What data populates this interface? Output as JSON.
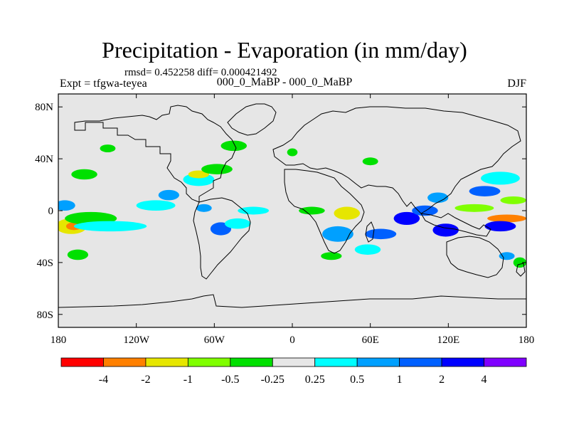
{
  "chart_data": {
    "type": "heatmap",
    "title": "Precipitation - Evaporation (in mm/day)",
    "stats": "rmsd= 0.452258 diff= 0.000421492",
    "left_string": "Expt = tfgwa-teyea",
    "center_string": "000_0_MaBP - 000_0_MaBP",
    "right_string": "DJF",
    "xlim": [
      -180,
      180
    ],
    "ylim": [
      -90,
      90
    ],
    "x_ticks": [
      {
        "value": -180,
        "label": "180"
      },
      {
        "value": -120,
        "label": "120W"
      },
      {
        "value": -60,
        "label": "60W"
      },
      {
        "value": 0,
        "label": "0"
      },
      {
        "value": 60,
        "label": "60E"
      },
      {
        "value": 120,
        "label": "120E"
      },
      {
        "value": 180,
        "label": "180"
      }
    ],
    "y_ticks": [
      {
        "value": 80,
        "label": "80N"
      },
      {
        "value": 40,
        "label": "40N"
      },
      {
        "value": 0,
        "label": "0"
      },
      {
        "value": -40,
        "label": "40S"
      },
      {
        "value": -80,
        "label": "80S"
      }
    ],
    "colorbar": {
      "colors": [
        "#ff0000",
        "#ff8000",
        "#e6e600",
        "#80ff00",
        "#00e000",
        "#e6e6e6",
        "#00ffff",
        "#00a0ff",
        "#0060ff",
        "#0000ff",
        "#8000ff"
      ],
      "labels": [
        "-4",
        "-2",
        "-1",
        "-0.5",
        "-0.25",
        "0.25",
        "0.5",
        "1",
        "2",
        "4"
      ]
    },
    "background_color": "#e6e6e6",
    "anomaly_patches": [
      {
        "lon": -175,
        "lat": 4,
        "rlon": 8,
        "rlat": 4,
        "level": 7
      },
      {
        "lon": -170,
        "lat": -12,
        "rlon": 12,
        "rlat": 6,
        "level": 2
      },
      {
        "lon": -168,
        "lat": -12,
        "rlon": 6,
        "rlat": 3,
        "level": 1
      },
      {
        "lon": -155,
        "lat": -6,
        "rlon": 20,
        "rlat": 5,
        "level": 4
      },
      {
        "lon": -140,
        "lat": -12,
        "rlon": 28,
        "rlat": 4,
        "level": 6
      },
      {
        "lon": -160,
        "lat": 28,
        "rlon": 10,
        "rlat": 4,
        "level": 4
      },
      {
        "lon": -142,
        "lat": 48,
        "rlon": 6,
        "rlat": 3,
        "level": 4
      },
      {
        "lon": -165,
        "lat": -34,
        "rlon": 8,
        "rlat": 4,
        "level": 4
      },
      {
        "lon": -105,
        "lat": 4,
        "rlon": 15,
        "rlat": 4,
        "level": 6
      },
      {
        "lon": -95,
        "lat": 12,
        "rlon": 8,
        "rlat": 4,
        "level": 7
      },
      {
        "lon": -72,
        "lat": 24,
        "rlon": 12,
        "rlat": 5,
        "level": 6
      },
      {
        "lon": -72,
        "lat": 28,
        "rlon": 8,
        "rlat": 3,
        "level": 2
      },
      {
        "lon": -58,
        "lat": 32,
        "rlon": 12,
        "rlat": 4,
        "level": 4
      },
      {
        "lon": -68,
        "lat": 2,
        "rlon": 6,
        "rlat": 3,
        "level": 7
      },
      {
        "lon": -55,
        "lat": -14,
        "rlon": 8,
        "rlat": 5,
        "level": 8
      },
      {
        "lon": -42,
        "lat": -10,
        "rlon": 10,
        "rlat": 4,
        "level": 6
      },
      {
        "lon": -30,
        "lat": 0,
        "rlon": 12,
        "rlat": 3,
        "level": 6
      },
      {
        "lon": -45,
        "lat": 50,
        "rlon": 10,
        "rlat": 4,
        "level": 4
      },
      {
        "lon": 15,
        "lat": 0,
        "rlon": 10,
        "rlat": 3,
        "level": 4
      },
      {
        "lon": 35,
        "lat": -18,
        "rlon": 12,
        "rlat": 6,
        "level": 7
      },
      {
        "lon": 42,
        "lat": -2,
        "rlon": 10,
        "rlat": 5,
        "level": 2
      },
      {
        "lon": 30,
        "lat": -35,
        "rlon": 8,
        "rlat": 3,
        "level": 4
      },
      {
        "lon": 58,
        "lat": -30,
        "rlon": 10,
        "rlat": 4,
        "level": 6
      },
      {
        "lon": 68,
        "lat": -18,
        "rlon": 12,
        "rlat": 4,
        "level": 8
      },
      {
        "lon": 88,
        "lat": -6,
        "rlon": 10,
        "rlat": 5,
        "level": 9
      },
      {
        "lon": 102,
        "lat": 0,
        "rlon": 10,
        "rlat": 4,
        "level": 8
      },
      {
        "lon": 118,
        "lat": -15,
        "rlon": 10,
        "rlat": 5,
        "level": 9
      },
      {
        "lon": 112,
        "lat": 10,
        "rlon": 8,
        "rlat": 4,
        "level": 7
      },
      {
        "lon": 140,
        "lat": 2,
        "rlon": 15,
        "rlat": 3,
        "level": 3
      },
      {
        "lon": 148,
        "lat": 15,
        "rlon": 12,
        "rlat": 4,
        "level": 8
      },
      {
        "lon": 160,
        "lat": 25,
        "rlon": 15,
        "rlat": 5,
        "level": 6
      },
      {
        "lon": 165,
        "lat": -6,
        "rlon": 15,
        "rlat": 3,
        "level": 1
      },
      {
        "lon": 160,
        "lat": -12,
        "rlon": 12,
        "rlat": 4,
        "level": 9
      },
      {
        "lon": 170,
        "lat": 8,
        "rlon": 10,
        "rlat": 3,
        "level": 3
      },
      {
        "lon": 165,
        "lat": -35,
        "rlon": 6,
        "rlat": 3,
        "level": 7
      },
      {
        "lon": 175,
        "lat": -40,
        "rlon": 5,
        "rlat": 4,
        "level": 4
      },
      {
        "lon": 0,
        "lat": 45,
        "rlon": 4,
        "rlat": 3,
        "level": 4
      },
      {
        "lon": 60,
        "lat": 38,
        "rlon": 6,
        "rlat": 3,
        "level": 4
      }
    ]
  }
}
